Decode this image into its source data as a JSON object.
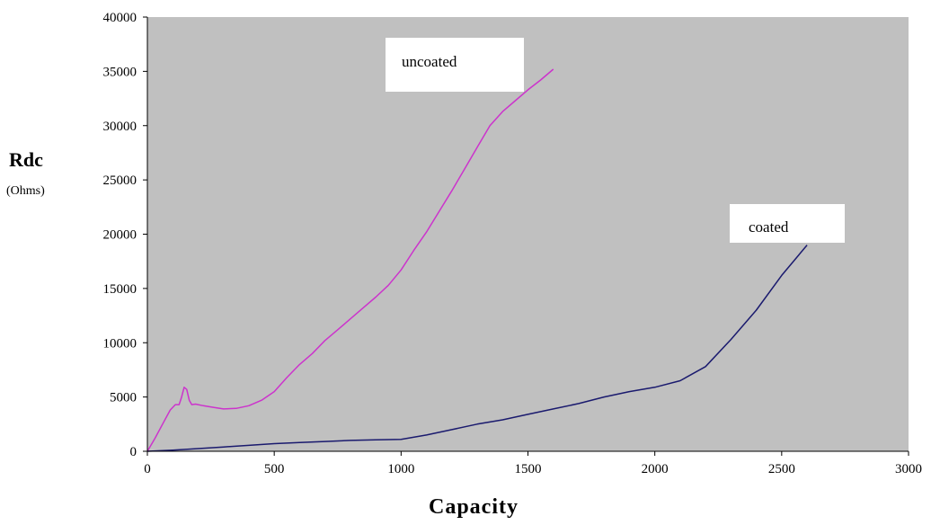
{
  "chart_data": {
    "type": "line",
    "xlabel": "Capacity",
    "ylabel": "Rdc",
    "ylabel_unit": "(Ohms)",
    "xlim": [
      0,
      3000
    ],
    "ylim": [
      0,
      40000
    ],
    "xticks": [
      0,
      500,
      1000,
      1500,
      2000,
      2500,
      3000
    ],
    "yticks": [
      0,
      5000,
      10000,
      15000,
      20000,
      25000,
      30000,
      35000,
      40000
    ],
    "grid": false,
    "plot_background": "#c0c0c0",
    "series": [
      {
        "name": "uncoated",
        "color": "#cc33cc",
        "x": [
          0,
          30,
          60,
          90,
          110,
          125,
          135,
          145,
          155,
          165,
          175,
          190,
          220,
          260,
          300,
          350,
          400,
          450,
          500,
          550,
          600,
          650,
          700,
          750,
          800,
          850,
          900,
          950,
          1000,
          1050,
          1100,
          1150,
          1200,
          1250,
          1300,
          1350,
          1400,
          1450,
          1500,
          1550,
          1600
        ],
        "y": [
          0,
          1200,
          2500,
          3800,
          4300,
          4300,
          5000,
          5900,
          5700,
          4700,
          4300,
          4350,
          4200,
          4050,
          3900,
          3950,
          4200,
          4700,
          5500,
          6800,
          8000,
          9000,
          10200,
          11200,
          12200,
          13200,
          14200,
          15300,
          16700,
          18500,
          20200,
          22100,
          24000,
          26000,
          28000,
          30000,
          31300,
          32300,
          33300,
          34200,
          35200
        ]
      },
      {
        "name": "coated",
        "color": "#1a1a6e",
        "x": [
          0,
          100,
          200,
          300,
          400,
          500,
          600,
          700,
          800,
          900,
          1000,
          1100,
          1200,
          1300,
          1400,
          1500,
          1600,
          1700,
          1800,
          1900,
          2000,
          2100,
          2200,
          2300,
          2400,
          2500,
          2600
        ],
        "y": [
          0,
          100,
          250,
          400,
          550,
          700,
          800,
          900,
          1000,
          1050,
          1100,
          1500,
          2000,
          2500,
          2900,
          3400,
          3900,
          4400,
          5000,
          5500,
          5900,
          6500,
          7800,
          10300,
          13000,
          16200,
          19000
        ]
      }
    ],
    "annotations": [
      {
        "text": "uncoated",
        "series": "uncoated"
      },
      {
        "text": "coated",
        "series": "coated"
      }
    ]
  }
}
